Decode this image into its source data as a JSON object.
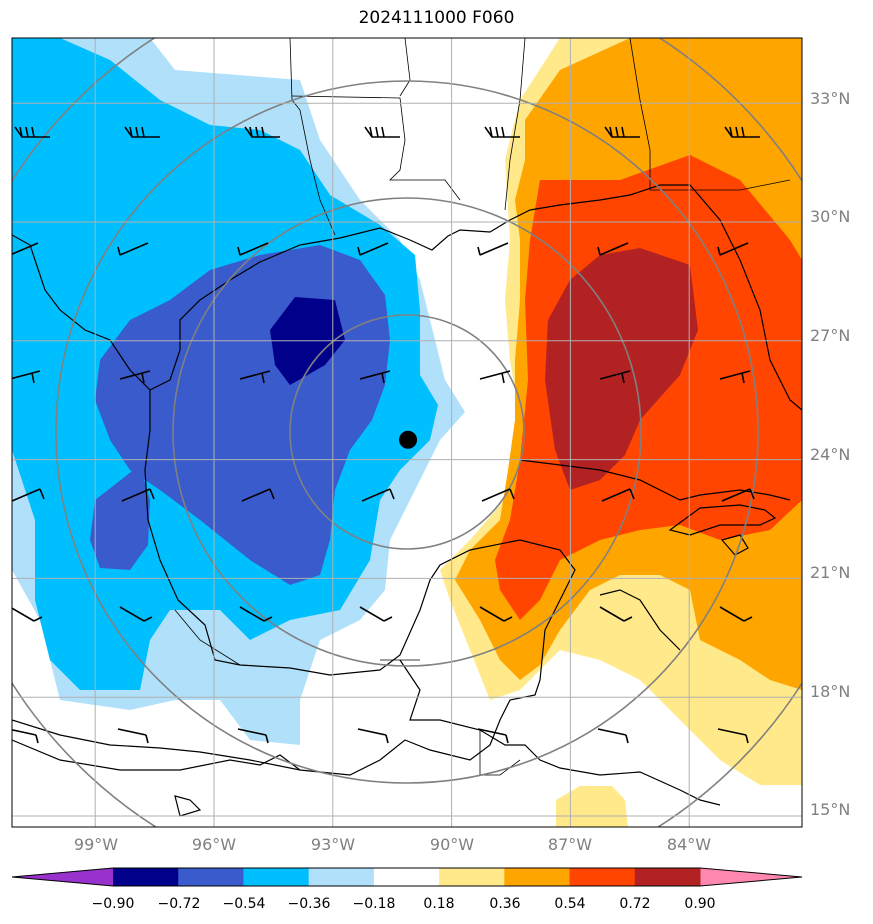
{
  "title": "2024111000 F060",
  "lon_labels": [
    "99°W",
    "96°W",
    "93°W",
    "90°W",
    "87°W",
    "84°W"
  ],
  "lat_labels": [
    "33°N",
    "30°N",
    "27°N",
    "24°N",
    "21°N",
    "18°N",
    "15°N"
  ],
  "colorbar": {
    "tick_labels": [
      "−0.90",
      "−0.72",
      "−0.54",
      "−0.36",
      "−0.18",
      "0.18",
      "0.36",
      "0.54",
      "0.72",
      "0.90"
    ],
    "colors": [
      "#9932cc",
      "#00008b",
      "#3a5bcc",
      "#00bfff",
      "#b0e0fa",
      "#ffffff",
      "#ffe98a",
      "#ffa500",
      "#ff4500",
      "#b22222",
      "#ff88b0"
    ]
  },
  "fill_colors": {
    "neg_018": "#b0e0fa",
    "neg_036": "#00bfff",
    "neg_054": "#3a5bcc",
    "neg_072": "#00008b",
    "pos_018": "#ffe98a",
    "pos_036": "#ffa500",
    "pos_054": "#ff4500",
    "pos_072": "#b22222"
  },
  "center_marker": {
    "lon": -91.1,
    "lat": 24.5
  }
}
